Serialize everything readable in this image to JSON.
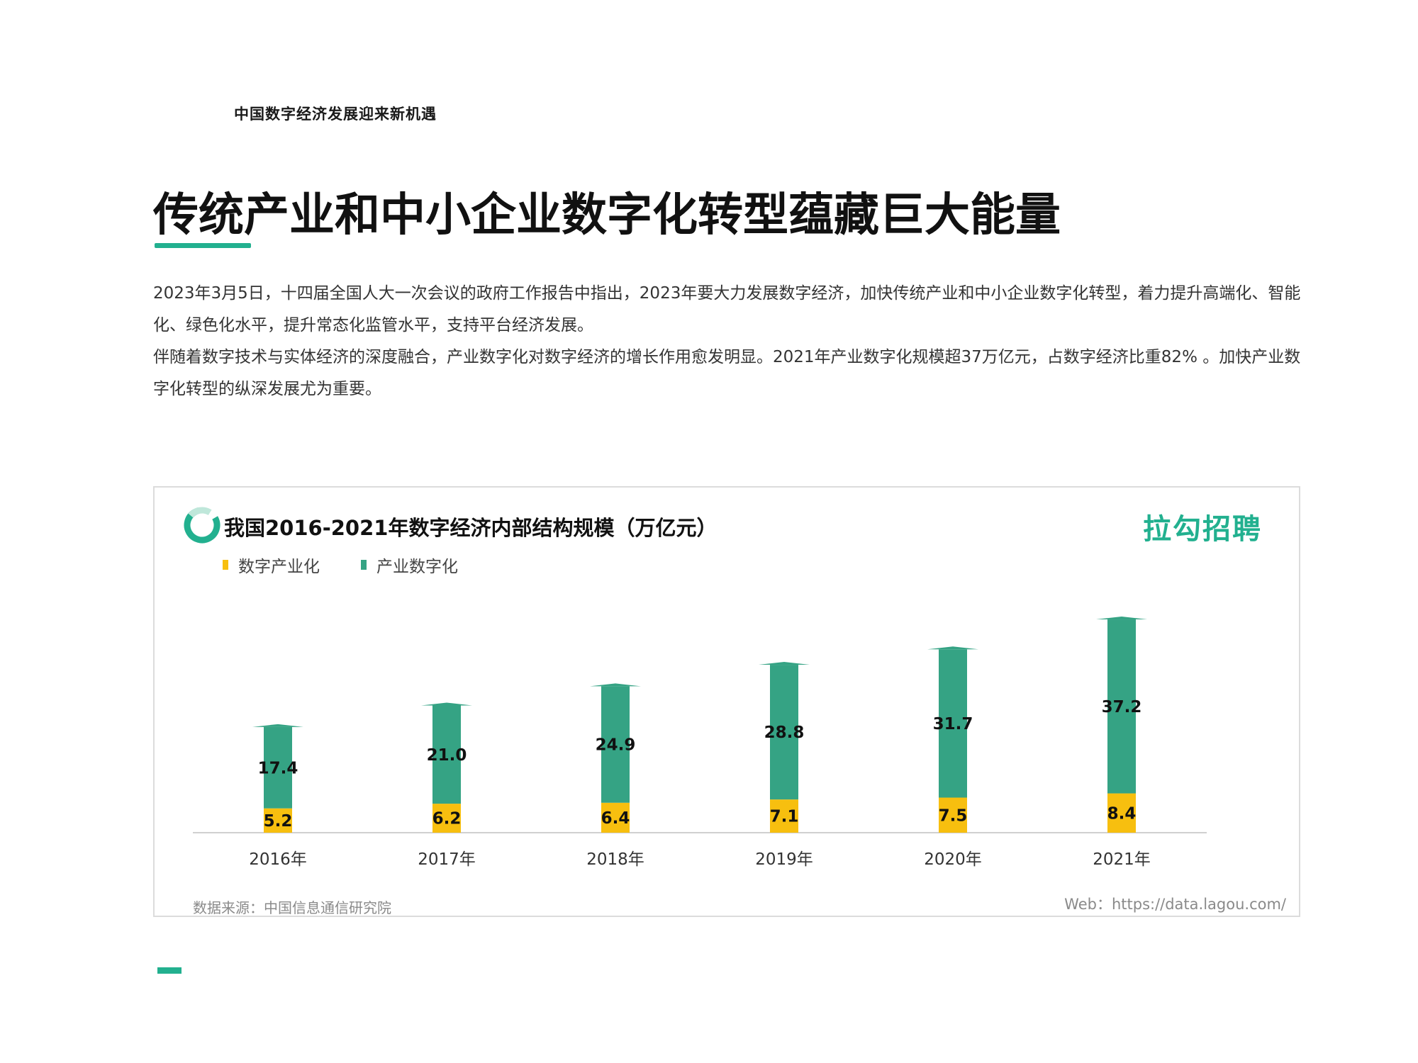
{
  "header": {
    "section_label": "中国数字经济发展迎来新机遇",
    "title": "传统产业和中小企业数字化转型蕴藏巨大能量"
  },
  "body": {
    "paragraph1": "2023年3月5日，十四届全国人大一次会议的政府工作报告中指出，2023年要大力发展数字经济，加快传统产业和中小企业数字化转型，着力提升高端化、智能化、绿色化水平，提升常态化监管水平，支持平台经济发展。",
    "paragraph2": "伴随着数字技术与实体经济的深度融合，产业数字化对数字经济的增长作用愈发明显。2021年产业数字化规模超37万亿元，占数字经济比重82% 。加快产业数字化转型的纵深发展尤为重要。"
  },
  "brand": "拉勾招聘",
  "footer": {
    "source": "数据来源：中国信息通信研究院",
    "web": "Web：https://data.lagou.com/"
  },
  "colors": {
    "accent": "#22b08f",
    "bar_green": "#35a384",
    "bar_yellow": "#f7bf0f"
  },
  "chart_data": {
    "type": "bar",
    "stacked": true,
    "title": "我国2016-2021年数字经济内部结构规模（万亿元）",
    "categories": [
      "2016年",
      "2017年",
      "2018年",
      "2019年",
      "2020年",
      "2021年"
    ],
    "series": [
      {
        "name": "数字产业化",
        "color": "#f7bf0f",
        "values": [
          5.2,
          6.2,
          6.4,
          7.1,
          7.5,
          8.4
        ]
      },
      {
        "name": "产业数字化",
        "color": "#35a384",
        "values": [
          17.4,
          21.0,
          24.9,
          28.8,
          31.7,
          37.2
        ]
      }
    ],
    "legend_position": "top-left",
    "grid": false
  }
}
